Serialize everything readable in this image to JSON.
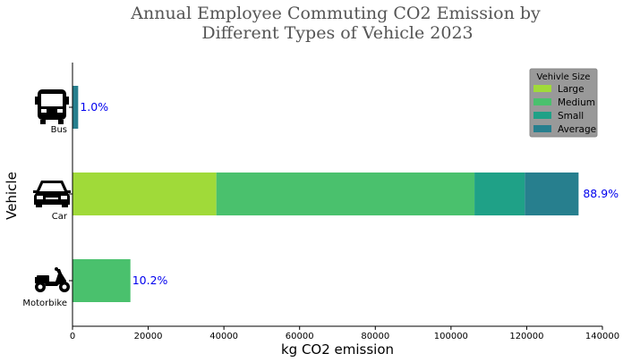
{
  "chart_data": {
    "type": "bar",
    "orientation": "horizontal",
    "stacked": true,
    "title_lines": [
      "Annual Employee Commuting CO2 Emission by",
      "Different Types of Vehicle 2023"
    ],
    "xlabel": "kg CO2 emission",
    "ylabel": "Vehicle",
    "xlim": [
      0,
      140000
    ],
    "xticks": [
      0,
      20000,
      40000,
      60000,
      80000,
      100000,
      120000,
      140000
    ],
    "categories": [
      "Bus",
      "Car",
      "Motorbike"
    ],
    "series": [
      {
        "name": "Large",
        "color": "#a0da39",
        "values": [
          0,
          38000,
          0
        ]
      },
      {
        "name": "Medium",
        "color": "#4ac16d",
        "values": [
          0,
          68200,
          15300
        ]
      },
      {
        "name": "Small",
        "color": "#1fa187",
        "values": [
          0,
          13300,
          0
        ]
      },
      {
        "name": "Average",
        "color": "#277f8e",
        "values": [
          1500,
          14200,
          0
        ]
      }
    ],
    "percent_labels": [
      "1.0%",
      "88.9%",
      "10.2%"
    ],
    "legend": {
      "title": "Vehivle Size",
      "position": "top-right"
    },
    "icons": [
      "bus-icon",
      "car-icon",
      "motorbike-icon"
    ],
    "grid": false
  }
}
